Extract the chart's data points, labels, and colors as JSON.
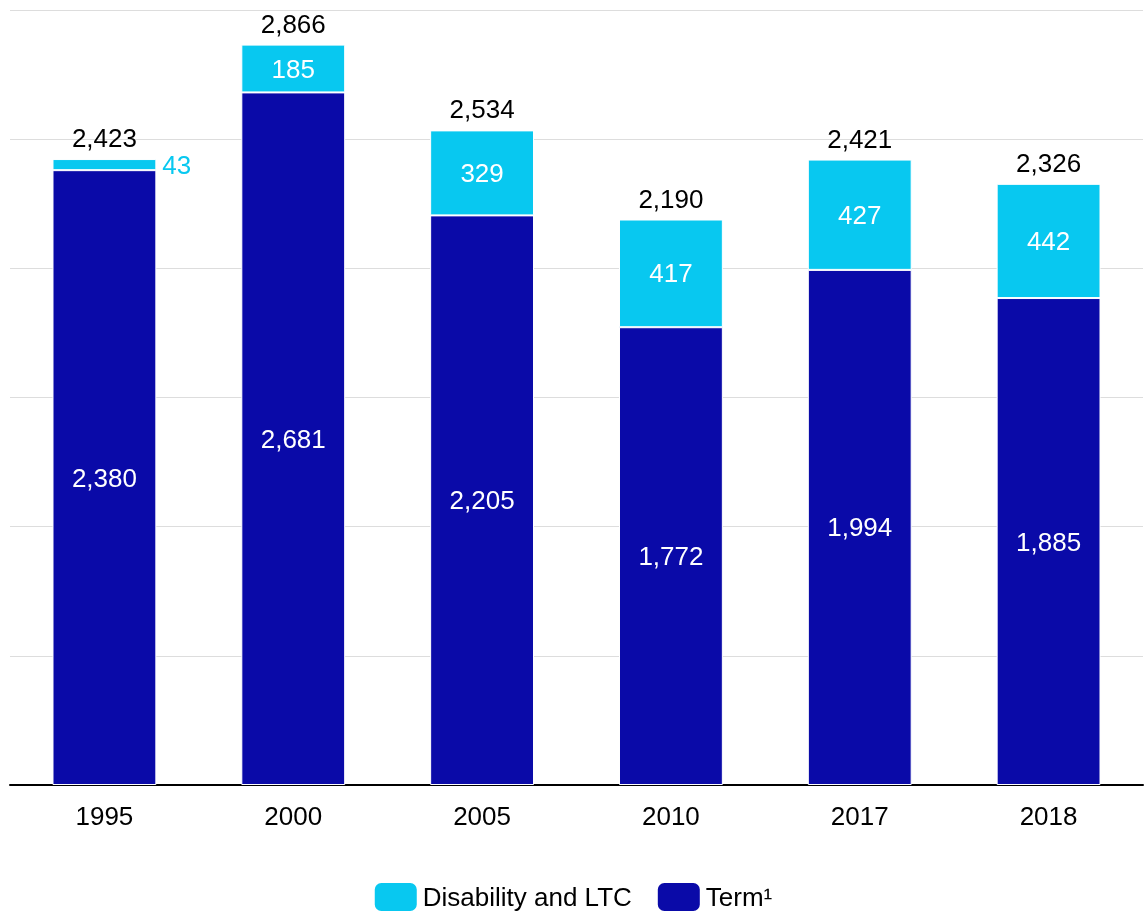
{
  "chart_data": {
    "type": "bar",
    "stacked": true,
    "categories": [
      "1995",
      "2000",
      "2005",
      "2010",
      "2017",
      "2018"
    ],
    "series": [
      {
        "name": "Term¹",
        "color": "#0a0aa8",
        "values": [
          2380,
          2681,
          2205,
          1772,
          1994,
          1885
        ],
        "value_labels": [
          "2,380",
          "2,681",
          "2,205",
          "1,772",
          "1,994",
          "1,885"
        ]
      },
      {
        "name": "Disability and LTC",
        "color": "#08c8f0",
        "values": [
          43,
          185,
          329,
          417,
          427,
          442
        ],
        "value_labels": [
          "43",
          "185",
          "329",
          "417",
          "427",
          "442"
        ]
      }
    ],
    "totals": [
      "2,423",
      "2,866",
      "2,534",
      "2,190",
      "2,421",
      "2,326"
    ],
    "ylim": [
      0,
      3000
    ],
    "yticks": [
      {
        "value": 0,
        "label": null
      },
      {
        "value": 500,
        "label": null
      },
      {
        "value": 1000,
        "label": null
      },
      {
        "value": 1500,
        "label": null
      },
      {
        "value": 2000,
        "label": null
      },
      {
        "value": 2500,
        "label": null
      },
      {
        "value": 3000,
        "label": null
      }
    ],
    "tick_labels": "x",
    "grid": "y",
    "legend": "bottom"
  }
}
